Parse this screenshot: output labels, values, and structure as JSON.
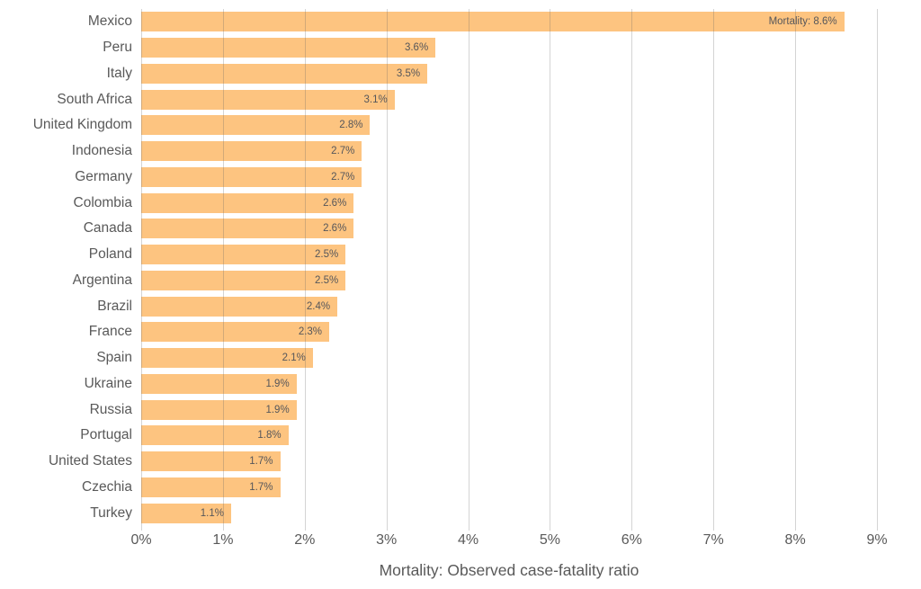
{
  "chart_data": {
    "type": "bar",
    "orientation": "horizontal",
    "title": "",
    "xlabel": "Mortality: Observed case-fatality ratio",
    "ylabel": "",
    "categories": [
      "Mexico",
      "Peru",
      "Italy",
      "South Africa",
      "United Kingdom",
      "Indonesia",
      "Germany",
      "Colombia",
      "Canada",
      "Poland",
      "Argentina",
      "Brazil",
      "France",
      "Spain",
      "Ukraine",
      "Russia",
      "Portugal",
      "United States",
      "Czechia",
      "Turkey"
    ],
    "values": [
      8.6,
      3.6,
      3.5,
      3.1,
      2.8,
      2.7,
      2.7,
      2.6,
      2.6,
      2.5,
      2.5,
      2.4,
      2.3,
      2.1,
      1.9,
      1.9,
      1.8,
      1.7,
      1.7,
      1.1
    ],
    "bar_labels": [
      "Mortality: 8.6%",
      "3.6%",
      "3.5%",
      "3.1%",
      "2.8%",
      "2.7%",
      "2.7%",
      "2.6%",
      "2.6%",
      "2.5%",
      "2.5%",
      "2.4%",
      "2.3%",
      "2.1%",
      "1.9%",
      "1.9%",
      "1.8%",
      "1.7%",
      "1.7%",
      "1.1%"
    ],
    "x_ticks": [
      "0%",
      "1%",
      "2%",
      "3%",
      "4%",
      "5%",
      "6%",
      "7%",
      "8%",
      "9%"
    ],
    "xlim": [
      0,
      9
    ],
    "grid": true,
    "legend": null,
    "colors": {
      "bar": "#fdc480",
      "grid_over_white": "#d4d4d4",
      "axis_text": "#595959",
      "value_text": "#55565a"
    }
  }
}
